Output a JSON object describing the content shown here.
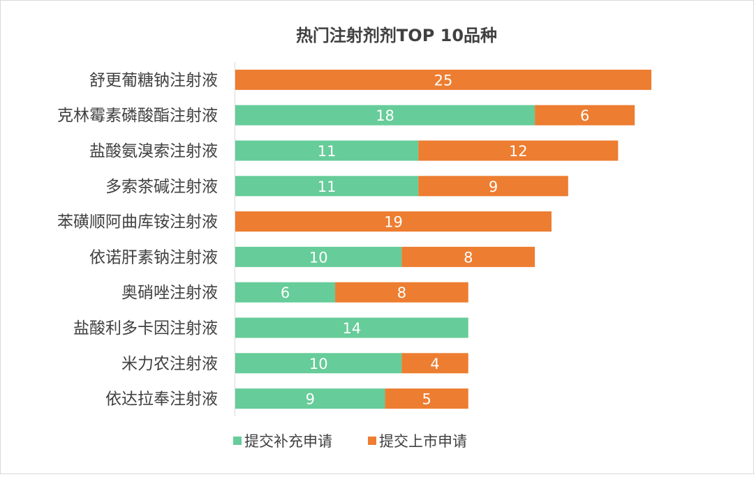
{
  "chart_data": {
    "type": "bar",
    "orientation": "horizontal",
    "stacked": true,
    "title": "热门注射剂剂TOP 10品种",
    "xlabel": "",
    "ylabel": "",
    "categories": [
      "舒更葡糖钠注射液",
      "克林霉素磷酸酯注射液",
      "盐酸氨溴索注射液",
      "多索茶碱注射液",
      "苯磺顺阿曲库铵注射液",
      "依诺肝素钠注射液",
      "奥硝唑注射液",
      "盐酸利多卡因注射液",
      "米力农注射液",
      "依达拉奉注射液"
    ],
    "series": [
      {
        "name": "提交补充申请",
        "color": "#66cc99",
        "values": [
          0,
          18,
          11,
          11,
          0,
          10,
          6,
          14,
          10,
          9
        ]
      },
      {
        "name": "提交上市申请",
        "color": "#ed7d31",
        "values": [
          25,
          6,
          12,
          9,
          19,
          8,
          8,
          0,
          4,
          5
        ]
      }
    ],
    "xlim": [
      0,
      25
    ],
    "data_labels": true,
    "grid": false,
    "legend_position": "bottom"
  }
}
